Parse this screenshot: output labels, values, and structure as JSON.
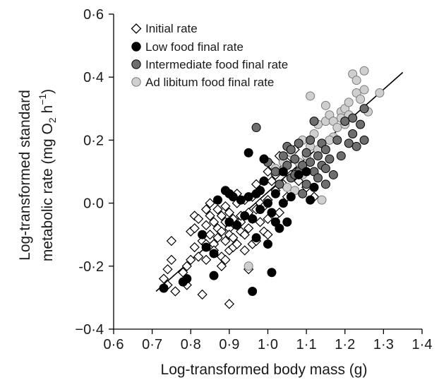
{
  "chart_data": {
    "type": "scatter",
    "title": "",
    "xlabel": "Log-transformed body mass (g)",
    "ylabel_line1": "Log-transformed standard",
    "ylabel_line2": "metabolic rate (mg O",
    "ylabel_sub": "2",
    "ylabel_mid": " h",
    "ylabel_sup": "−1",
    "ylabel_end": ")",
    "xlim": [
      0.6,
      1.4
    ],
    "ylim": [
      -0.4,
      0.6
    ],
    "xticks": [
      {
        "v": 0.6,
        "label": "0·6"
      },
      {
        "v": 0.7,
        "label": "0·7"
      },
      {
        "v": 0.8,
        "label": "0·8"
      },
      {
        "v": 0.9,
        "label": "0·9"
      },
      {
        "v": 1.0,
        "label": "1·0"
      },
      {
        "v": 1.1,
        "label": "1·1"
      },
      {
        "v": 1.2,
        "label": "1·2"
      },
      {
        "v": 1.3,
        "label": "1·3"
      },
      {
        "v": 1.4,
        "label": "1·4"
      }
    ],
    "yticks": [
      {
        "v": -0.4,
        "label": "−0·4"
      },
      {
        "v": -0.2,
        "label": "-0·2"
      },
      {
        "v": 0.0,
        "label": "0·0"
      },
      {
        "v": 0.2,
        "label": "0·2"
      },
      {
        "v": 0.4,
        "label": "0·4"
      },
      {
        "v": 0.6,
        "label": "0·6"
      }
    ],
    "legend_position": "top-left",
    "fit_line": {
      "x": [
        0.71,
        1.35
      ],
      "y": [
        -0.28,
        0.415
      ]
    },
    "series": [
      {
        "name": "Initial rate",
        "marker": "diamond-open",
        "color": "#000000",
        "points": [
          [
            0.73,
            -0.24
          ],
          [
            0.74,
            -0.21
          ],
          [
            0.74,
            -0.26
          ],
          [
            0.75,
            -0.12
          ],
          [
            0.75,
            -0.18
          ],
          [
            0.76,
            -0.28
          ],
          [
            0.78,
            -0.22
          ],
          [
            0.79,
            -0.2
          ],
          [
            0.79,
            -0.26
          ],
          [
            0.8,
            -0.18
          ],
          [
            0.8,
            -0.09
          ],
          [
            0.81,
            -0.08
          ],
          [
            0.81,
            -0.14
          ],
          [
            0.81,
            -0.04
          ],
          [
            0.82,
            -0.05
          ],
          [
            0.82,
            -0.17
          ],
          [
            0.83,
            -0.12
          ],
          [
            0.83,
            -0.29
          ],
          [
            0.84,
            -0.13
          ],
          [
            0.84,
            -0.07
          ],
          [
            0.84,
            -0.02
          ],
          [
            0.84,
            -0.18
          ],
          [
            0.85,
            0.0
          ],
          [
            0.85,
            -0.1
          ],
          [
            0.85,
            -0.04
          ],
          [
            0.86,
            -0.06
          ],
          [
            0.86,
            -0.13
          ],
          [
            0.86,
            -0.15
          ],
          [
            0.87,
            -0.08
          ],
          [
            0.87,
            -0.02
          ],
          [
            0.87,
            -0.11
          ],
          [
            0.88,
            -0.04
          ],
          [
            0.88,
            -0.09
          ],
          [
            0.88,
            -0.17
          ],
          [
            0.88,
            -0.2
          ],
          [
            0.89,
            -0.01
          ],
          [
            0.89,
            -0.06
          ],
          [
            0.89,
            -0.12
          ],
          [
            0.89,
            -0.18
          ],
          [
            0.9,
            -0.03
          ],
          [
            0.9,
            -0.08
          ],
          [
            0.9,
            -0.1
          ],
          [
            0.9,
            -0.15
          ],
          [
            0.91,
            -0.05
          ],
          [
            0.91,
            -0.11
          ],
          [
            0.91,
            -0.14
          ],
          [
            0.92,
            -0.07
          ],
          [
            0.92,
            -0.13
          ],
          [
            0.92,
            0.0
          ],
          [
            0.92,
            0.03
          ],
          [
            0.93,
            -0.09
          ],
          [
            0.93,
            -0.06
          ],
          [
            0.93,
            -0.04
          ],
          [
            0.94,
            -0.1
          ],
          [
            0.94,
            -0.15
          ],
          [
            0.94,
            0.01
          ],
          [
            0.95,
            -0.03
          ],
          [
            0.95,
            -0.08
          ],
          [
            0.95,
            -0.21
          ],
          [
            0.96,
            -0.05
          ],
          [
            0.96,
            -0.13
          ],
          [
            0.96,
            0.02
          ],
          [
            0.97,
            -0.02
          ],
          [
            0.97,
            -0.12
          ],
          [
            0.97,
            0.06
          ],
          [
            0.98,
            0.04
          ],
          [
            0.98,
            -0.06
          ],
          [
            0.98,
            0.0
          ],
          [
            0.99,
            0.07
          ],
          [
            0.99,
            -0.09
          ],
          [
            0.99,
            -0.01
          ],
          [
            1.0,
            0.1
          ],
          [
            1.0,
            0.01
          ],
          [
            1.0,
            -0.05
          ],
          [
            1.0,
            -0.1
          ],
          [
            1.01,
            0.07
          ],
          [
            1.01,
            0.12
          ],
          [
            1.02,
            -0.04
          ],
          [
            1.02,
            0.09
          ],
          [
            1.02,
            0.04
          ],
          [
            1.03,
            0.15
          ],
          [
            1.03,
            -0.03
          ],
          [
            1.04,
            0.06
          ],
          [
            1.04,
            0.11
          ],
          [
            1.05,
            0.13
          ],
          [
            1.05,
            0.02
          ],
          [
            1.06,
            0.09
          ],
          [
            1.07,
            0.17
          ],
          [
            1.08,
            0.07
          ],
          [
            1.1,
            0.05
          ],
          [
            1.12,
            0.02
          ],
          [
            0.9,
            -0.32
          ]
        ]
      },
      {
        "name": "Low food final rate",
        "marker": "circle",
        "color": "#000000",
        "points": [
          [
            0.73,
            -0.27
          ],
          [
            0.78,
            -0.25
          ],
          [
            0.79,
            -0.24
          ],
          [
            0.83,
            -0.1
          ],
          [
            0.84,
            -0.14
          ],
          [
            0.86,
            -0.16
          ],
          [
            0.86,
            -0.23
          ],
          [
            0.87,
            0.01
          ],
          [
            0.89,
            0.04
          ],
          [
            0.9,
            -0.06
          ],
          [
            0.9,
            0.03
          ],
          [
            0.91,
            0.02
          ],
          [
            0.92,
            -0.07
          ],
          [
            0.93,
            0.01
          ],
          [
            0.94,
            -0.04
          ],
          [
            0.95,
            0.16
          ],
          [
            0.95,
            0.02
          ],
          [
            0.96,
            -0.28
          ],
          [
            0.96,
            -0.05
          ],
          [
            0.97,
            0.03
          ],
          [
            0.97,
            -0.11
          ],
          [
            0.98,
            -0.02
          ],
          [
            0.98,
            0.04
          ],
          [
            0.99,
            0.14
          ],
          [
            0.99,
            0.07
          ],
          [
            1.0,
            -0.13
          ],
          [
            1.0,
            0.0
          ],
          [
            1.01,
            -0.03
          ],
          [
            1.01,
            -0.22
          ],
          [
            1.02,
            0.03
          ],
          [
            1.02,
            -0.06
          ],
          [
            1.03,
            -0.08
          ],
          [
            1.04,
            0.0
          ],
          [
            1.05,
            -0.06
          ],
          [
            1.06,
            0.02
          ],
          [
            1.08,
            0.09
          ],
          [
            1.1,
            0.1
          ],
          [
            1.11,
            0.01
          ],
          [
            1.12,
            0.05
          ],
          [
            1.04,
            0.1
          ]
        ]
      },
      {
        "name": "Intermediate food final rate",
        "marker": "circle",
        "color": "#6e6e6e",
        "points": [
          [
            0.97,
            0.24
          ],
          [
            1.0,
            0.13
          ],
          [
            1.02,
            0.1
          ],
          [
            1.03,
            0.06
          ],
          [
            1.04,
            0.15
          ],
          [
            1.05,
            0.18
          ],
          [
            1.05,
            0.12
          ],
          [
            1.06,
            0.08
          ],
          [
            1.06,
            0.17
          ],
          [
            1.07,
            0.14
          ],
          [
            1.08,
            0.1
          ],
          [
            1.08,
            0.19
          ],
          [
            1.09,
            0.03
          ],
          [
            1.09,
            0.12
          ],
          [
            1.1,
            0.16
          ],
          [
            1.1,
            0.06
          ],
          [
            1.11,
            0.13
          ],
          [
            1.11,
            0.2
          ],
          [
            1.12,
            0.1
          ],
          [
            1.12,
            0.26
          ],
          [
            1.13,
            0.15
          ],
          [
            1.13,
            0.08
          ],
          [
            1.14,
            0.12
          ],
          [
            1.14,
            0.19
          ],
          [
            1.15,
            0.11
          ],
          [
            1.15,
            0.06
          ],
          [
            1.16,
            0.14
          ],
          [
            1.17,
            0.09
          ],
          [
            1.18,
            0.2
          ],
          [
            1.19,
            0.15
          ],
          [
            1.2,
            0.26
          ],
          [
            1.21,
            0.19
          ],
          [
            1.22,
            0.22
          ],
          [
            1.22,
            0.27
          ],
          [
            1.23,
            0.18
          ],
          [
            1.24,
            0.25
          ],
          [
            1.25,
            0.2
          ],
          [
            1.25,
            0.3
          ],
          [
            1.15,
            0.17
          ],
          [
            1.07,
            0.09
          ]
        ]
      },
      {
        "name": "Ad libitum food final rate",
        "marker": "circle",
        "color": "#cfcfcf",
        "points": [
          [
            0.95,
            -0.2
          ],
          [
            0.99,
            0.14
          ],
          [
            1.02,
            0.11
          ],
          [
            1.04,
            0.13
          ],
          [
            1.05,
            0.05
          ],
          [
            1.06,
            0.16
          ],
          [
            1.07,
            0.04
          ],
          [
            1.08,
            0.13
          ],
          [
            1.09,
            0.2
          ],
          [
            1.09,
            0.09
          ],
          [
            1.1,
            0.15
          ],
          [
            1.11,
            0.18
          ],
          [
            1.11,
            0.34
          ],
          [
            1.12,
            0.22
          ],
          [
            1.13,
            0.17
          ],
          [
            1.13,
            0.25
          ],
          [
            1.14,
            0.01
          ],
          [
            1.15,
            0.26
          ],
          [
            1.15,
            0.31
          ],
          [
            1.16,
            0.28
          ],
          [
            1.17,
            0.26
          ],
          [
            1.17,
            0.21
          ],
          [
            1.18,
            0.24
          ],
          [
            1.19,
            0.29
          ],
          [
            1.19,
            0.27
          ],
          [
            1.2,
            0.3
          ],
          [
            1.21,
            0.32
          ],
          [
            1.21,
            0.28
          ],
          [
            1.22,
            0.41
          ],
          [
            1.23,
            0.39
          ],
          [
            1.23,
            0.35
          ],
          [
            1.24,
            0.33
          ],
          [
            1.25,
            0.42
          ],
          [
            1.25,
            0.36
          ],
          [
            1.26,
            0.29
          ],
          [
            1.29,
            0.35
          ],
          [
            1.2,
            0.25
          ],
          [
            1.16,
            0.2
          ]
        ]
      }
    ]
  }
}
